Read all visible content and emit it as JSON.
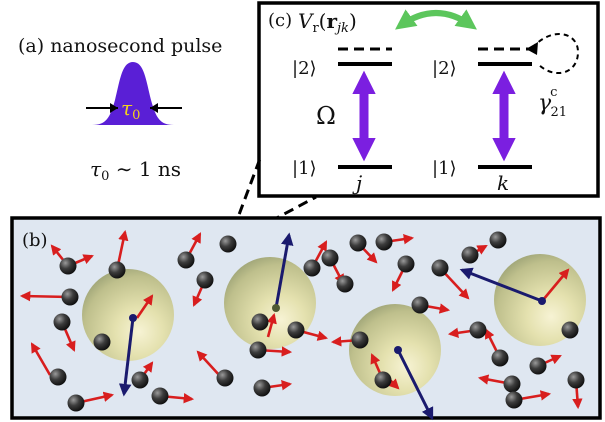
{
  "panel_a": {
    "label": "(a) nanosecond pulse",
    "pulse_width_symbol": "τ",
    "pulse_width_sub": "0",
    "pulse_relation_lhs": "τ",
    "pulse_relation_sub": "0",
    "pulse_relation_rhs": " ∼ 1 ns",
    "pulse_color": "#5a1fd6",
    "pulse_label_color": "#f2d21b"
  },
  "panel_b": {
    "label": "(b)",
    "background_color": "#dfe7f1",
    "arrow_color": "#d81e1e",
    "rydberg_arrow_color": "#1a1a6e"
  },
  "panel_c": {
    "label": "(c)",
    "interaction_main": "V",
    "interaction_sub": "r",
    "interaction_arg_open": "(",
    "interaction_arg_bold": "r",
    "interaction_arg_sub": "jk",
    "interaction_arg_close": ")",
    "atom_j": {
      "upper_state": "|2⟩",
      "lower_state": "|1⟩",
      "coupling": "Ω",
      "name": "j"
    },
    "atom_k": {
      "upper_state": "|2⟩",
      "lower_state": "|1⟩",
      "name": "k"
    },
    "decay_main": "γ",
    "decay_sup": "c",
    "decay_sub": "21",
    "interaction_arrow_color": "#5cc65c",
    "drive_arrow_color": "#7b1fe0"
  }
}
